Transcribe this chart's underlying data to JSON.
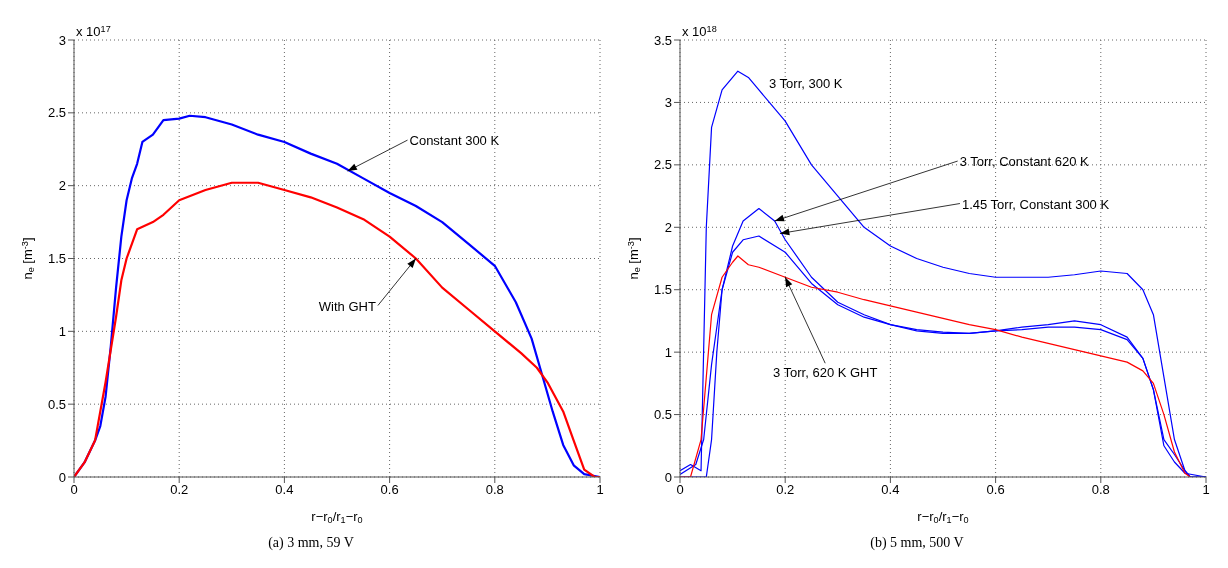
{
  "chart_data": [
    {
      "type": "line",
      "title": "(a) 3 mm, 59 V",
      "xlabel": "r−r$_{0}$/r$_{1}$−r$_{0}$",
      "ylabel": "n$_{e}$ [m$^{-3}$]",
      "xlim": [
        0,
        1
      ],
      "xticks": [
        0,
        0.2,
        0.4,
        0.6,
        0.8,
        1
      ],
      "ylim": [
        0,
        3
      ],
      "yticks": [
        0,
        0.5,
        1,
        1.5,
        2,
        2.5,
        3
      ],
      "grid": true,
      "marker": "none",
      "line_style": "solid",
      "annotations": [
        "x 10$^{17}$",
        {
          "text": "Constant 300 K",
          "x": 0.52,
          "y": 2.1
        },
        {
          "text": "With GHT",
          "x": 0.65,
          "y": 1.5
        }
      ],
      "series": [
        {
          "color": "#0000ff",
          "x": [
            0,
            0.02,
            0.04,
            0.05,
            0.06,
            0.07,
            0.08,
            0.09,
            0.1,
            0.11,
            0.12,
            0.13,
            0.15,
            0.17,
            0.2,
            0.22,
            0.25,
            0.3,
            0.35,
            0.4,
            0.45,
            0.5,
            0.55,
            0.6,
            0.65,
            0.7,
            0.75,
            0.8,
            0.84,
            0.87,
            0.89,
            0.91,
            0.93,
            0.95,
            0.97,
            1
          ],
          "values": [
            0,
            0.1,
            0.25,
            0.35,
            0.55,
            0.9,
            1.3,
            1.65,
            1.9,
            2.05,
            2.15,
            2.3,
            2.35,
            2.45,
            2.46,
            2.48,
            2.47,
            2.42,
            2.35,
            2.3,
            2.22,
            2.15,
            2.05,
            1.95,
            1.86,
            1.75,
            1.6,
            1.45,
            1.2,
            0.95,
            0.7,
            0.45,
            0.22,
            0.08,
            0.02,
            0
          ]
        },
        {
          "color": "#ff0000",
          "x": [
            0,
            0.02,
            0.04,
            0.06,
            0.08,
            0.09,
            0.1,
            0.12,
            0.15,
            0.17,
            0.2,
            0.25,
            0.3,
            0.35,
            0.4,
            0.45,
            0.5,
            0.55,
            0.6,
            0.65,
            0.7,
            0.75,
            0.8,
            0.85,
            0.88,
            0.9,
            0.93,
            0.95,
            0.97,
            0.99,
            1
          ],
          "values": [
            0,
            0.1,
            0.25,
            0.65,
            1.1,
            1.35,
            1.5,
            1.7,
            1.75,
            1.8,
            1.9,
            1.97,
            2.02,
            2.02,
            1.97,
            1.92,
            1.85,
            1.77,
            1.65,
            1.5,
            1.3,
            1.15,
            1,
            0.85,
            0.75,
            0.65,
            0.45,
            0.25,
            0.05,
            0,
            0
          ]
        }
      ]
    },
    {
      "type": "line",
      "title": "(b) 5 mm, 500 V",
      "xlabel": "r−r$_{0}$/r$_{1}$−r$_{0}$",
      "ylabel": "n$_{e}$ [m$^{-3}$]",
      "xlim": [
        0,
        1
      ],
      "xticks": [
        0,
        0.2,
        0.4,
        0.6,
        0.8,
        1
      ],
      "ylim": [
        0,
        3.5
      ],
      "yticks": [
        0,
        0.5,
        1,
        1.5,
        2,
        2.5,
        3,
        3.5
      ],
      "grid": true,
      "marker": "none",
      "line_style": "solid",
      "annotations": [
        "x 10$^{18}$",
        "3 Torr, 300 K",
        {
          "text": "3 Torr, Constant 620 K",
          "x": 0.18,
          "y": 2.05
        },
        {
          "text": "1.45 Torr, Constant 300 K",
          "x": 0.19,
          "y": 1.95
        },
        {
          "text": "3 Torr, 620 K GHT",
          "x": 0.2,
          "y": 1.6
        }
      ],
      "series": [
        {
          "color": "#0000ff",
          "x": [
            0,
            0.02,
            0.04,
            0.05,
            0.06,
            0.08,
            0.1,
            0.11,
            0.13,
            0.15,
            0.2,
            0.25,
            0.3,
            0.35,
            0.4,
            0.45,
            0.5,
            0.55,
            0.6,
            0.65,
            0.7,
            0.75,
            0.8,
            0.85,
            0.88,
            0.9,
            0.92,
            0.94,
            0.96,
            0.97,
            1
          ],
          "values": [
            0.05,
            0.1,
            0.05,
            2,
            2.8,
            3.1,
            3.2,
            3.25,
            3.2,
            3.1,
            2.85,
            2.5,
            2.25,
            2,
            1.85,
            1.75,
            1.68,
            1.63,
            1.6,
            1.6,
            1.6,
            1.62,
            1.65,
            1.63,
            1.5,
            1.3,
            0.8,
            0.3,
            0.05,
            0,
            0
          ]
        },
        {
          "color": "#0000ff",
          "x": [
            0,
            0.05,
            0.06,
            0.07,
            0.08,
            0.1,
            0.12,
            0.15,
            0.18,
            0.2,
            0.25,
            0.3,
            0.35,
            0.4,
            0.45,
            0.5,
            0.55,
            0.6,
            0.65,
            0.7,
            0.75,
            0.8,
            0.85,
            0.88,
            0.9,
            0.92,
            0.94,
            0.96,
            0.97,
            1
          ],
          "values": [
            0,
            0,
            0.3,
            1,
            1.5,
            1.85,
            2.05,
            2.15,
            2.05,
            1.9,
            1.6,
            1.4,
            1.3,
            1.22,
            1.18,
            1.16,
            1.15,
            1.17,
            1.2,
            1.22,
            1.25,
            1.22,
            1.12,
            0.95,
            0.7,
            0.3,
            0.18,
            0.05,
            0,
            0
          ]
        },
        {
          "color": "#0000ff",
          "x": [
            0,
            0.03,
            0.045,
            0.06,
            0.08,
            0.1,
            0.12,
            0.15,
            0.2,
            0.25,
            0.3,
            0.35,
            0.4,
            0.45,
            0.5,
            0.55,
            0.6,
            0.65,
            0.7,
            0.75,
            0.8,
            0.85,
            0.88,
            0.9,
            0.92,
            0.94,
            0.96,
            1
          ],
          "values": [
            0.02,
            0.1,
            0.3,
            0.9,
            1.5,
            1.8,
            1.9,
            1.93,
            1.8,
            1.55,
            1.38,
            1.28,
            1.22,
            1.17,
            1.15,
            1.15,
            1.17,
            1.18,
            1.2,
            1.2,
            1.18,
            1.1,
            0.95,
            0.7,
            0.25,
            0.12,
            0.03,
            0
          ]
        },
        {
          "color": "#ff0000",
          "x": [
            0,
            0.02,
            0.04,
            0.05,
            0.06,
            0.08,
            0.1,
            0.11,
            0.13,
            0.15,
            0.2,
            0.25,
            0.3,
            0.35,
            0.4,
            0.45,
            0.5,
            0.55,
            0.6,
            0.65,
            0.7,
            0.75,
            0.8,
            0.85,
            0.88,
            0.9,
            0.92,
            0.94,
            0.96,
            0.97
          ],
          "values": [
            0,
            0,
            0.3,
            0.8,
            1.3,
            1.6,
            1.72,
            1.77,
            1.7,
            1.68,
            1.6,
            1.52,
            1.48,
            1.42,
            1.37,
            1.32,
            1.27,
            1.22,
            1.18,
            1.12,
            1.07,
            1.02,
            0.97,
            0.92,
            0.85,
            0.75,
            0.5,
            0.2,
            0.03,
            0
          ]
        }
      ]
    }
  ]
}
